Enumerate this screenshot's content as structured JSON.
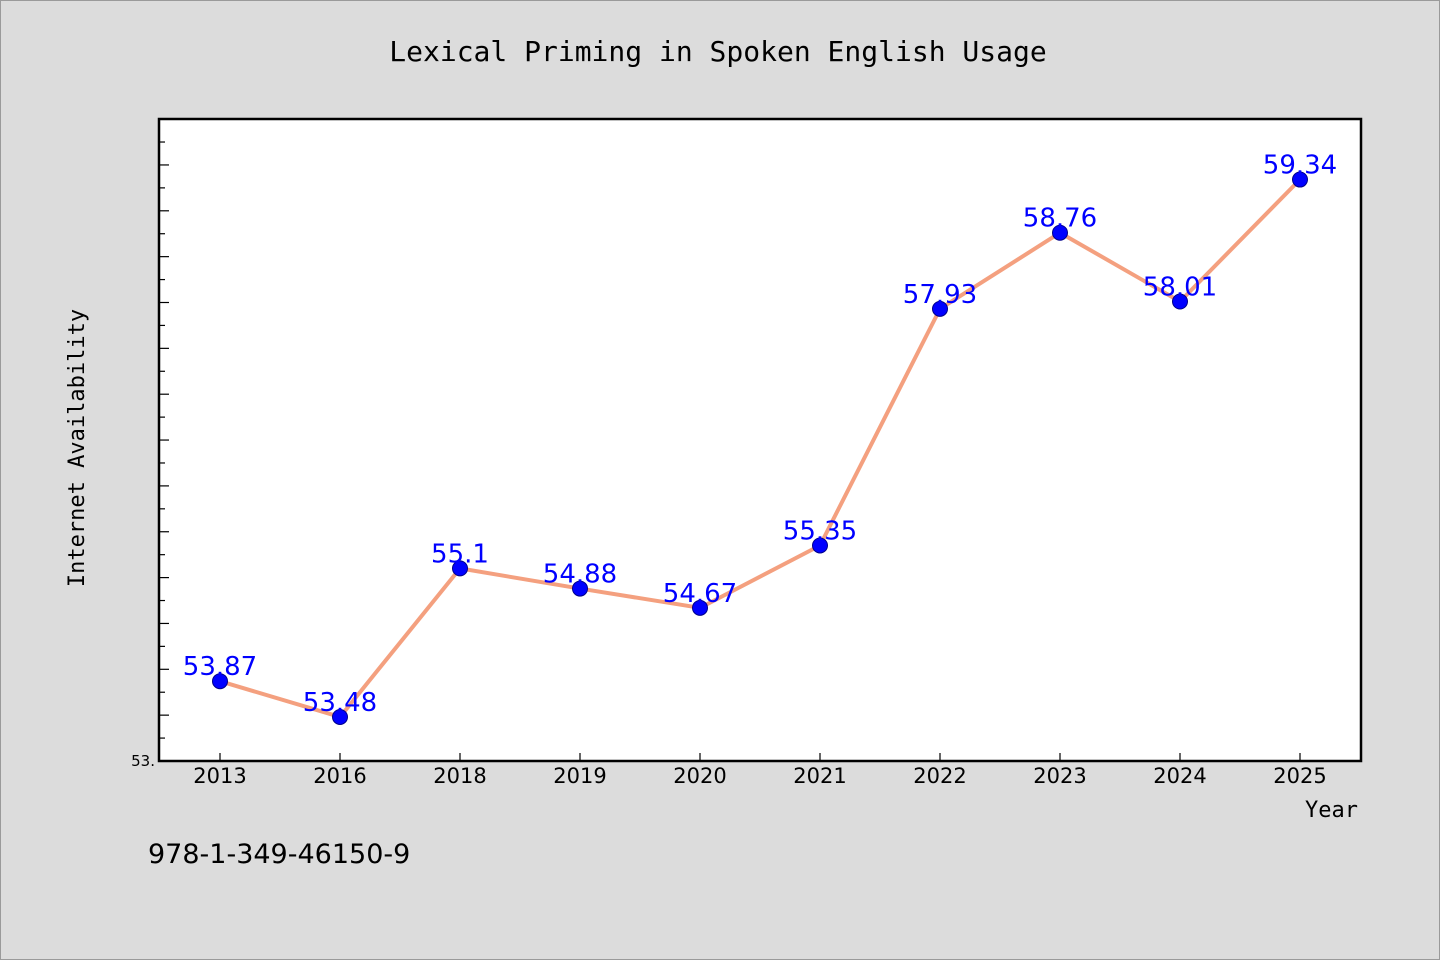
{
  "chart_data": {
    "type": "line",
    "title": "Lexical Priming in Spoken English Usage",
    "xlabel": "Year",
    "ylabel": "Internet Availability",
    "categories": [
      "2013",
      "2016",
      "2018",
      "2019",
      "2020",
      "2021",
      "2022",
      "2023",
      "2024",
      "2025"
    ],
    "series": [
      {
        "values": [
          53.87,
          53.48,
          55.1,
          54.88,
          54.67,
          55.35,
          57.93,
          58.76,
          58.01,
          59.34
        ]
      }
    ],
    "data_labels": [
      "53.87",
      "53.48",
      "55.1",
      "54.88",
      "54.67",
      "55.35",
      "57.93",
      "58.76",
      "58.01",
      "59.34"
    ],
    "ylim": [
      53.0,
      60.0
    ],
    "ytick_label": "53.",
    "grid": false,
    "legend": "none",
    "colors": {
      "line": "#f4a07f",
      "marker": "#0000ff",
      "data_label": "#0000ff",
      "background": "#dcdcdc",
      "plot_background": "#ffffff"
    }
  },
  "footnote": "978-1-349-46150-9"
}
